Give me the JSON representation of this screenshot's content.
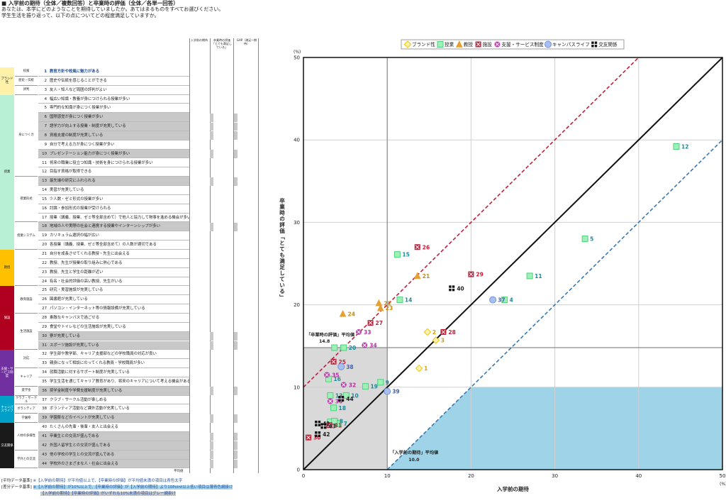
{
  "header": {
    "title": "■ 入学前の期待（全体／複数回答）と卒業時の評価（全体／各単一回答）",
    "sub1": "あなたは、本学にどのようなことを期待していましたか。あてはまるものをすべてお選びください。",
    "sub2": "学生生活を振り返って、以下の点についてどの程度満足していますか。"
  },
  "table": {
    "col_heads": [
      "入学前の期待",
      "卒業時の評価「とても満足している」",
      "GAP（満足ー期待）"
    ],
    "footer_label": "平均値",
    "categories": [
      {
        "label": "ブランド性",
        "color": "#fff2a8",
        "from": 1,
        "to": 3
      },
      {
        "label": "授業",
        "color": "#b7f0d4",
        "from": 4,
        "to": 20
      },
      {
        "label": "教授",
        "color": "#ffc000",
        "from": 21,
        "to": 24
      },
      {
        "label": "施設",
        "color": "#b00020",
        "from": 25,
        "to": 31
      },
      {
        "label": "支援・サービス制度",
        "color": "#7030a0",
        "from": 32,
        "to": 36
      },
      {
        "label": "キャンパスライフ",
        "color": "#00a0c8",
        "from": 37,
        "to": 39
      },
      {
        "label": "交友関係",
        "color": "#1a1a1a",
        "from": 40,
        "to": 44
      }
    ],
    "subcategories": [
      {
        "label": "校風",
        "from": 1,
        "to": 1
      },
      {
        "label": "歴史・伝統",
        "from": 2,
        "to": 2
      },
      {
        "label": "評判",
        "from": 3,
        "to": 3
      },
      {
        "label": "身につく力",
        "from": 4,
        "to": 12
      },
      {
        "label": "授業形式",
        "from": 13,
        "to": 17
      },
      {
        "label": "授業システム",
        "from": 18,
        "to": 20
      },
      {
        "label": "",
        "from": 21,
        "to": 24
      },
      {
        "label": "教育施設",
        "from": 25,
        "to": 27
      },
      {
        "label": "生活施設",
        "from": 28,
        "to": 31
      },
      {
        "label": "対応",
        "from": 32,
        "to": 33
      },
      {
        "label": "キャリア",
        "from": 34,
        "to": 35
      },
      {
        "label": "奨学金",
        "from": 36,
        "to": 36
      },
      {
        "label": "クラブ・サークル",
        "from": 37,
        "to": 37
      },
      {
        "label": "ボランティア",
        "from": 38,
        "to": 38
      },
      {
        "label": "学園祭",
        "from": 39,
        "to": 39
      },
      {
        "label": "人材の多様性",
        "from": 40,
        "to": 42
      },
      {
        "label": "学外との交流",
        "from": 43,
        "to": 44
      }
    ],
    "items": [
      {
        "n": "1",
        "text": "教育方針や校風に魅力がある",
        "style": "blue"
      },
      {
        "n": "2",
        "text": "歴史や伝統を感じることができる",
        "style": ""
      },
      {
        "n": "3",
        "text": "友人・知人など周囲の評判がよい",
        "style": ""
      },
      {
        "n": "4",
        "text": "幅広い知識・教養が身につけられる授業が多い",
        "style": ""
      },
      {
        "n": "5",
        "text": "専門的な知識が身につく授業が多い",
        "style": ""
      },
      {
        "n": "6",
        "text": "国際感覚が身につく授業が多い",
        "style": "gray"
      },
      {
        "n": "7",
        "text": "語学力が向上する授業・制度が充実している",
        "style": "gray"
      },
      {
        "n": "8",
        "text": "資格支援の制度が充実している",
        "style": "gray"
      },
      {
        "n": "9",
        "text": "自分で考える力が身につく授業が多い",
        "style": ""
      },
      {
        "n": "10",
        "text": "プレゼンテーション能力が身につく授業が多い",
        "style": "gray"
      },
      {
        "n": "11",
        "text": "将来の職業に役立つ知識・技術を身につけられる授業が多い",
        "style": ""
      },
      {
        "n": "12",
        "text": "目指す資格が取得できる",
        "style": ""
      },
      {
        "n": "13",
        "text": "最先端の研究にふれられる",
        "style": "gray"
      },
      {
        "n": "14",
        "text": "実習が充実している",
        "style": ""
      },
      {
        "n": "15",
        "text": "少人数・ゼミ形式の授業が多い",
        "style": ""
      },
      {
        "n": "16",
        "text": "討論・参加形式の授業が受けられる",
        "style": ""
      },
      {
        "n": "17",
        "text": "授業（講義、授業、ゼミ等全部含めて）で他人と協力して物事を進める機会が多い",
        "style": ""
      },
      {
        "n": "18",
        "text": "地域の人や実際の社会と連携する授業やインターンシップが多い",
        "style": "gray"
      },
      {
        "n": "19",
        "text": "カリキュラム選択の幅が広い",
        "style": ""
      },
      {
        "n": "20",
        "text": "各授業（講義、授業、ゼミ等全部含めて）の人数が適切である",
        "style": ""
      },
      {
        "n": "21",
        "text": "自分を成長させてくれる教授・先生に出会える",
        "style": ""
      },
      {
        "n": "22",
        "text": "教授、先生が授業の取り組みに熱心である",
        "style": ""
      },
      {
        "n": "23",
        "text": "教授、先生と学生の距離が近い",
        "style": ""
      },
      {
        "n": "24",
        "text": "有名・社会的評価の高い教授、先生がいる",
        "style": ""
      },
      {
        "n": "25",
        "text": "研究・実習施設が充実している",
        "style": ""
      },
      {
        "n": "26",
        "text": "図書館が充実している",
        "style": ""
      },
      {
        "n": "27",
        "text": "パソコン・インターネット等の情報設備が充実している",
        "style": ""
      },
      {
        "n": "28",
        "text": "素敵なキャンパスで過ごせる",
        "style": ""
      },
      {
        "n": "29",
        "text": "食堂やトイレなどの生活施設が充実している",
        "style": ""
      },
      {
        "n": "30",
        "text": "寮が充実している",
        "style": "gray"
      },
      {
        "n": "31",
        "text": "スポーツ施設が充実している",
        "style": "gray"
      },
      {
        "n": "32",
        "text": "学生部や教学部、キャリア支援部などの学校職員の対応が良い",
        "style": ""
      },
      {
        "n": "33",
        "text": "親身になって相談にのってくれる教員・学校職員が多い",
        "style": ""
      },
      {
        "n": "34",
        "text": "就職活動に対するサポート制度が充実している",
        "style": ""
      },
      {
        "n": "35",
        "text": "学生生活を通じてキャリア教育があり、将来のキャリアについて考える機会がある",
        "style": ""
      },
      {
        "n": "36",
        "text": "奨学金制度や学費支援制度が充実している",
        "style": "gray"
      },
      {
        "n": "37",
        "text": "クラブ・サークル活動が楽しめる",
        "style": ""
      },
      {
        "n": "38",
        "text": "ボランティア活動など課外活動が充実している",
        "style": ""
      },
      {
        "n": "39",
        "text": "学園祭などのイベントが充実している",
        "style": "gray"
      },
      {
        "n": "40",
        "text": "たくさんの先輩・後輩・友人と出会える",
        "style": ""
      },
      {
        "n": "41",
        "text": "卒業生との交流が盛んである",
        "style": "gray"
      },
      {
        "n": "42",
        "text": "外国人留学生との交流が盛んである",
        "style": "gray"
      },
      {
        "n": "43",
        "text": "他の学校の学生との交流が盛んである",
        "style": "gray"
      },
      {
        "n": "44",
        "text": "学校外のさまざまな人・社会に出会える",
        "style": "gray"
      }
    ],
    "notes": {
      "n1_label": "[平均データ基準]",
      "n1_text": "※【入学前の期待】が平均値以上で、【卒業時の評価】が平均値未満の項目は青色太字",
      "n2_label": "[差分データ基準]",
      "n2_text": "※【入学前の期待】が10%以上で、【卒業時の評価】が【入学前の期待】より10Point以上低い項目は薄青色網掛け",
      "n3_text": "【入学前の期待】【卒業時の評価】がいずれも10%未満の項目はグレー網掛け"
    }
  },
  "chart_data": {
    "type": "scatter",
    "xlabel": "入学前の期待",
    "ylabel": "卒業時の評価「とても満足している」",
    "x_unit": "(%)",
    "y_unit": "(%)",
    "xlim": [
      0,
      50
    ],
    "ylim": [
      0,
      50
    ],
    "xticks": [
      0,
      10,
      20,
      30,
      40,
      50
    ],
    "yticks": [
      0,
      10,
      20,
      30,
      40,
      50
    ],
    "grid": true,
    "legend_position": "top",
    "x_mean": 10.0,
    "y_mean": 14.8,
    "x_mean_label": "「入学前の期待」平均値",
    "x_mean_value": "10.0",
    "y_mean_label": "「卒業時の評価」平均値",
    "y_mean_value": "14.8",
    "series": [
      {
        "name": "ブランド性",
        "marker": "diamond",
        "color": "#f0c000",
        "points": [
          {
            "id": "1",
            "x": 13.8,
            "y": 12.3
          },
          {
            "id": "2",
            "x": 14.8,
            "y": 16.7
          },
          {
            "id": "3",
            "x": 15.8,
            "y": 15.7
          }
        ]
      },
      {
        "name": "授業",
        "marker": "square",
        "color": "#4cd37a",
        "points": [
          {
            "id": "4",
            "x": 24.0,
            "y": 20.6
          },
          {
            "id": "5",
            "x": 33.6,
            "y": 28.0
          },
          {
            "id": "6",
            "x": 3.2,
            "y": 5.8
          },
          {
            "id": "7",
            "x": 4.2,
            "y": 5.6
          },
          {
            "id": "8",
            "x": 3.7,
            "y": 5.9
          },
          {
            "id": "9",
            "x": 9.2,
            "y": 10.6
          },
          {
            "id": "10",
            "x": 5.1,
            "y": 9.0
          },
          {
            "id": "11",
            "x": 27.0,
            "y": 23.5
          },
          {
            "id": "12",
            "x": 44.5,
            "y": 39.2
          },
          {
            "id": "13",
            "x": 3.2,
            "y": 9.0
          },
          {
            "id": "14",
            "x": 11.5,
            "y": 20.6
          },
          {
            "id": "15",
            "x": 11.2,
            "y": 26.1
          },
          {
            "id": "16",
            "x": 3.0,
            "y": 11.0
          },
          {
            "id": "17",
            "x": 3.7,
            "y": 14.8
          },
          {
            "id": "18",
            "x": 3.6,
            "y": 7.5
          },
          {
            "id": "19",
            "x": 7.4,
            "y": 10.1
          },
          {
            "id": "20",
            "x": 4.8,
            "y": 14.8
          }
        ]
      },
      {
        "name": "教授",
        "marker": "triangle",
        "color": "#e6a030",
        "points": [
          {
            "id": "21",
            "x": 13.6,
            "y": 23.5
          },
          {
            "id": "22",
            "x": 9.0,
            "y": 20.2
          },
          {
            "id": "23",
            "x": 9.2,
            "y": 19.6
          },
          {
            "id": "24",
            "x": 4.7,
            "y": 18.9
          }
        ]
      },
      {
        "name": "施設",
        "marker": "boxx",
        "color": "#c0203a",
        "points": [
          {
            "id": "25",
            "x": 3.6,
            "y": 13.1
          },
          {
            "id": "26",
            "x": 13.6,
            "y": 27.0
          },
          {
            "id": "27",
            "x": 8.0,
            "y": 17.8
          },
          {
            "id": "28",
            "x": 16.7,
            "y": 16.7
          },
          {
            "id": "29",
            "x": 20.0,
            "y": 23.7
          },
          {
            "id": "30",
            "x": 0.6,
            "y": 3.9
          },
          {
            "id": "31",
            "x": 3.1,
            "y": 5.4
          }
        ]
      },
      {
        "name": "支援・サービス制度",
        "marker": "circlex",
        "color": "#c040b0",
        "points": [
          {
            "id": "32",
            "x": 4.8,
            "y": 10.3
          },
          {
            "id": "33",
            "x": 6.6,
            "y": 16.7
          },
          {
            "id": "34",
            "x": 7.3,
            "y": 15.1
          },
          {
            "id": "35",
            "x": 2.8,
            "y": 11.5
          },
          {
            "id": "36",
            "x": 3.2,
            "y": 8.3
          }
        ]
      },
      {
        "name": "キャンパスライフ",
        "marker": "circle",
        "color": "#7090d8",
        "points": [
          {
            "id": "37",
            "x": 22.6,
            "y": 20.6
          },
          {
            "id": "38",
            "x": 4.5,
            "y": 12.5
          },
          {
            "id": "39",
            "x": 10.0,
            "y": 9.5
          }
        ]
      },
      {
        "name": "交友関係",
        "marker": "quad",
        "color": "#111111",
        "points": [
          {
            "id": "40",
            "x": 17.7,
            "y": 22.0
          },
          {
            "id": "41",
            "x": 1.7,
            "y": 5.6
          },
          {
            "id": "42",
            "x": 1.7,
            "y": 4.3
          },
          {
            "id": "43",
            "x": 2.4,
            "y": 5.3
          },
          {
            "id": "44",
            "x": 4.5,
            "y": 8.6
          }
        ]
      }
    ]
  }
}
